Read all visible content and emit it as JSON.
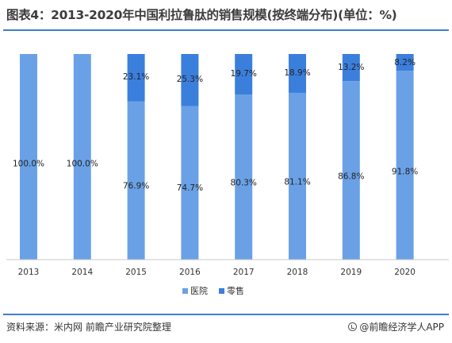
{
  "header": {
    "title": "图表4：2013-2020年中国利拉鲁肽的销售规模(按终端分布)(单位：%)"
  },
  "footer": {
    "source": "资料来源：米内网 前瞻产业研究院整理",
    "brand": "@前瞻经济学人APP"
  },
  "chart_data": {
    "type": "bar",
    "stacked": true,
    "categories": [
      "2013",
      "2014",
      "2015",
      "2016",
      "2017",
      "2018",
      "2019",
      "2020"
    ],
    "series": [
      {
        "name": "医院",
        "color": "#6aa1e6",
        "values": [
          100.0,
          100.0,
          76.9,
          74.7,
          80.3,
          81.1,
          86.8,
          91.8
        ],
        "labels": [
          "100.0%",
          "100.0%",
          "76.9%",
          "74.7%",
          "80.3%",
          "81.1%",
          "86.8%",
          "91.8%"
        ]
      },
      {
        "name": "零售",
        "color": "#3b7fdd",
        "values": [
          0,
          0,
          23.1,
          25.3,
          19.7,
          18.9,
          13.2,
          8.2
        ],
        "labels": [
          "",
          "",
          "23.1%",
          "25.3%",
          "19.7%",
          "18.9%",
          "13.2%",
          "8.2%"
        ]
      }
    ],
    "ylim": [
      0,
      100
    ],
    "grid": false,
    "legend": "bottom"
  }
}
